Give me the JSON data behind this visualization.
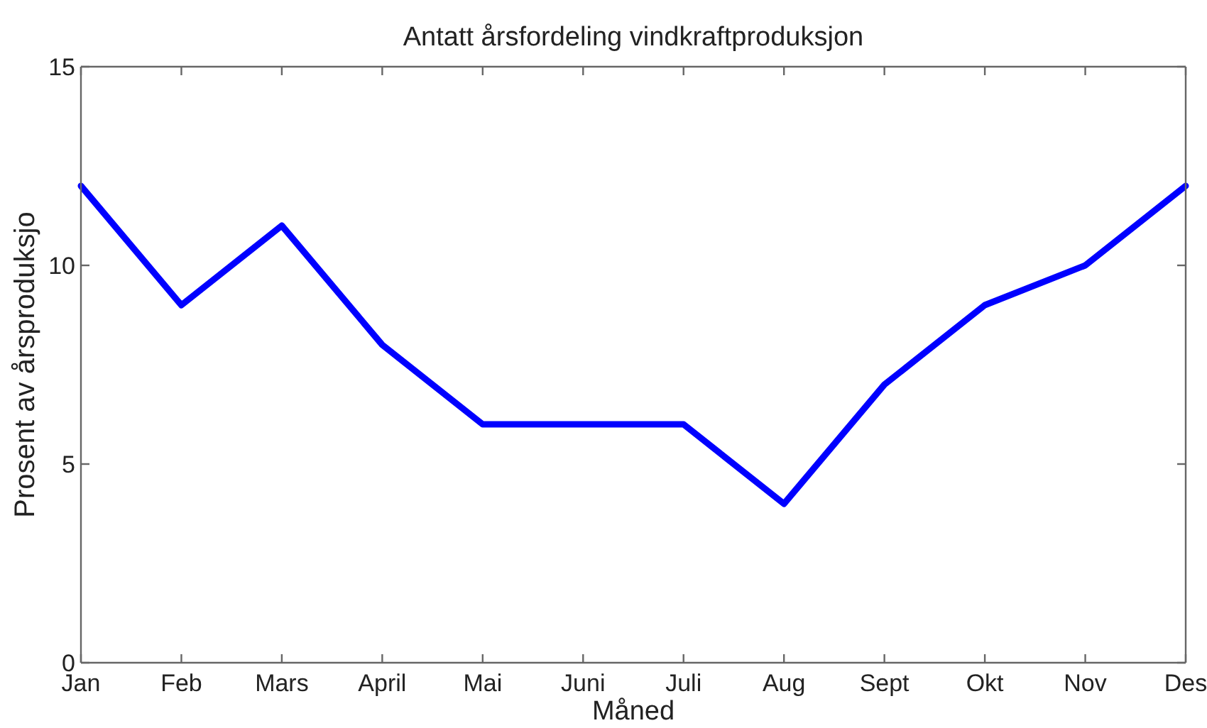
{
  "chart_data": {
    "type": "line",
    "title": "Antatt årsfordeling vindkraftproduksjon",
    "xlabel": "Måned",
    "ylabel": "Prosent av årsproduksjo",
    "categories": [
      "Jan",
      "Feb",
      "Mars",
      "April",
      "Mai",
      "Juni",
      "Juli",
      "Aug",
      "Sept",
      "Okt",
      "Nov",
      "Des"
    ],
    "series": [
      {
        "color": "#0000ff",
        "values": [
          12,
          9,
          11,
          8,
          6,
          6,
          6,
          4,
          7,
          9,
          10,
          12
        ]
      }
    ],
    "ylim": [
      0,
      15
    ],
    "yticks": [
      0,
      5,
      10,
      15
    ],
    "marker": "none",
    "line_style": "solid"
  }
}
